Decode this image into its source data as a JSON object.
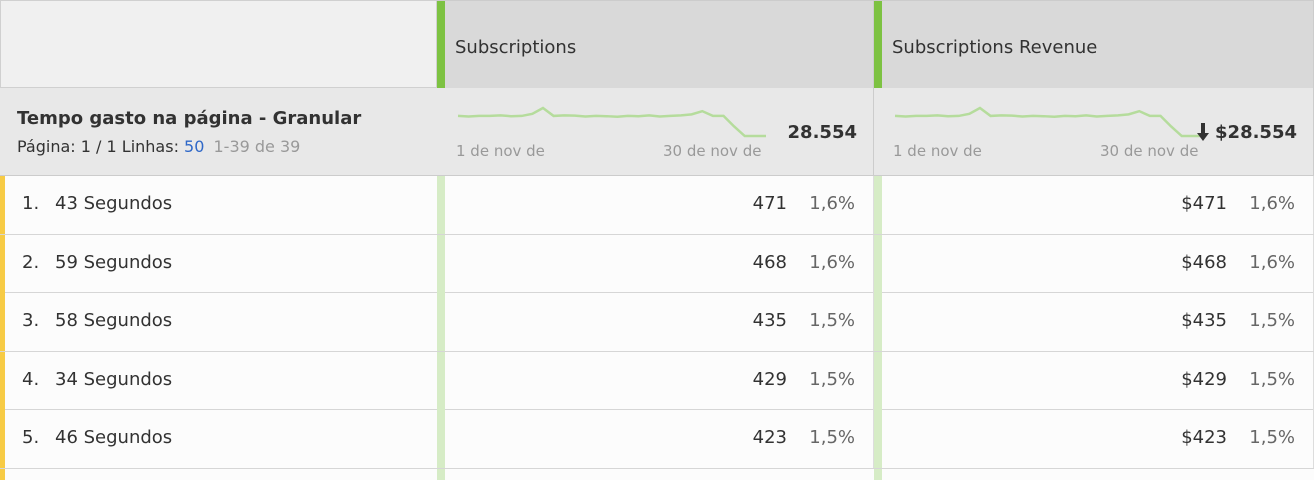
{
  "table": {
    "dimension": {
      "title": "Tempo gasto na página - Granular",
      "page_label": "Página: 1 / 1",
      "rows_label": "Linhas:",
      "rows_per_page": "50",
      "range": "1-39 de 39"
    },
    "columns": [
      {
        "title": "Subscriptions",
        "total": "28.554",
        "trend_start": "1 de nov de",
        "trend_end": "30 de nov de",
        "trend": [
          1000,
          990,
          1000,
          1000,
          1010,
          995,
          1000,
          1040,
          1150,
          1000,
          1010,
          1005,
          990,
          1000,
          995,
          985,
          1000,
          995,
          1010,
          990,
          1000,
          1010,
          1030,
          1090,
          1000,
          1000,
          800,
          620,
          620,
          620
        ]
      },
      {
        "title": "Subscriptions Revenue",
        "total": "$28.554",
        "trend_start": "1 de nov de",
        "trend_end": "30 de nov de",
        "trend": [
          1000,
          990,
          1000,
          1000,
          1010,
          995,
          1000,
          1040,
          1150,
          1000,
          1010,
          1005,
          990,
          1000,
          995,
          985,
          1000,
          995,
          1010,
          990,
          1000,
          1010,
          1030,
          1090,
          1000,
          1000,
          800,
          620,
          620,
          620
        ]
      }
    ],
    "rows": [
      {
        "rank": "1.",
        "label": "43 Segundos",
        "cells": [
          [
            "471",
            "1,6%"
          ],
          [
            "$471",
            "1,6%"
          ]
        ]
      },
      {
        "rank": "2.",
        "label": "59 Segundos",
        "cells": [
          [
            "468",
            "1,6%"
          ],
          [
            "$468",
            "1,6%"
          ]
        ]
      },
      {
        "rank": "3.",
        "label": "58 Segundos",
        "cells": [
          [
            "435",
            "1,5%"
          ],
          [
            "$435",
            "1,5%"
          ]
        ]
      },
      {
        "rank": "4.",
        "label": "34 Segundos",
        "cells": [
          [
            "429",
            "1,5%"
          ],
          [
            "$429",
            "1,5%"
          ]
        ]
      },
      {
        "rank": "5.",
        "label": "46 Segundos",
        "cells": [
          [
            "423",
            "1,5%"
          ],
          [
            "$423",
            "1,5%"
          ]
        ]
      }
    ]
  }
}
